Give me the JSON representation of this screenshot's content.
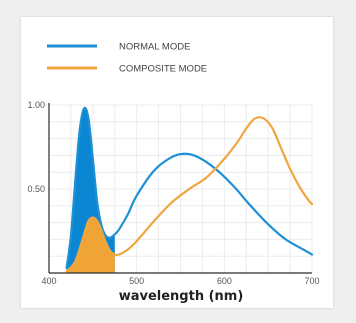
{
  "chart_data": {
    "type": "line",
    "title": "",
    "xlabel": "wavelength (nm)",
    "ylabel": "",
    "xlim": [
      400,
      700
    ],
    "ylim": [
      0,
      1
    ],
    "xticks": [
      400,
      500,
      600,
      700
    ],
    "yticks": [
      0.5,
      1.0
    ],
    "xtick_labels": [
      "400",
      "500",
      "600",
      "700"
    ],
    "ytick_labels": [
      "0.50",
      "1.00"
    ],
    "grid": true,
    "legend_position": "top-left",
    "series": [
      {
        "name": "NORMAL MODE",
        "color": "#1f8fd6",
        "fill_color": "#0a86d2",
        "fill_range": [
          400,
          475
        ],
        "x": [
          420,
          425,
          430,
          435,
          440,
          445,
          450,
          455,
          460,
          465,
          470,
          475,
          480,
          490,
          500,
          520,
          540,
          555,
          570,
          590,
          610,
          630,
          650,
          670,
          690,
          700
        ],
        "y": [
          0.03,
          0.22,
          0.55,
          0.85,
          0.98,
          0.92,
          0.68,
          0.42,
          0.28,
          0.22,
          0.21,
          0.23,
          0.26,
          0.35,
          0.46,
          0.61,
          0.69,
          0.71,
          0.69,
          0.62,
          0.52,
          0.4,
          0.29,
          0.2,
          0.14,
          0.11
        ]
      },
      {
        "name": "COMPOSITE MODE",
        "color": "#f0a640",
        "fill_color": "#f1a436",
        "fill_range": [
          400,
          475
        ],
        "x": [
          420,
          430,
          440,
          445,
          450,
          455,
          460,
          465,
          470,
          475,
          480,
          490,
          500,
          520,
          540,
          560,
          580,
          600,
          615,
          625,
          635,
          645,
          655,
          665,
          675,
          685,
          695,
          700
        ],
        "y": [
          0.01,
          0.07,
          0.23,
          0.31,
          0.33,
          0.31,
          0.25,
          0.18,
          0.13,
          0.11,
          0.11,
          0.14,
          0.19,
          0.31,
          0.42,
          0.5,
          0.57,
          0.68,
          0.78,
          0.86,
          0.92,
          0.92,
          0.86,
          0.74,
          0.62,
          0.52,
          0.44,
          0.41
        ]
      }
    ]
  }
}
